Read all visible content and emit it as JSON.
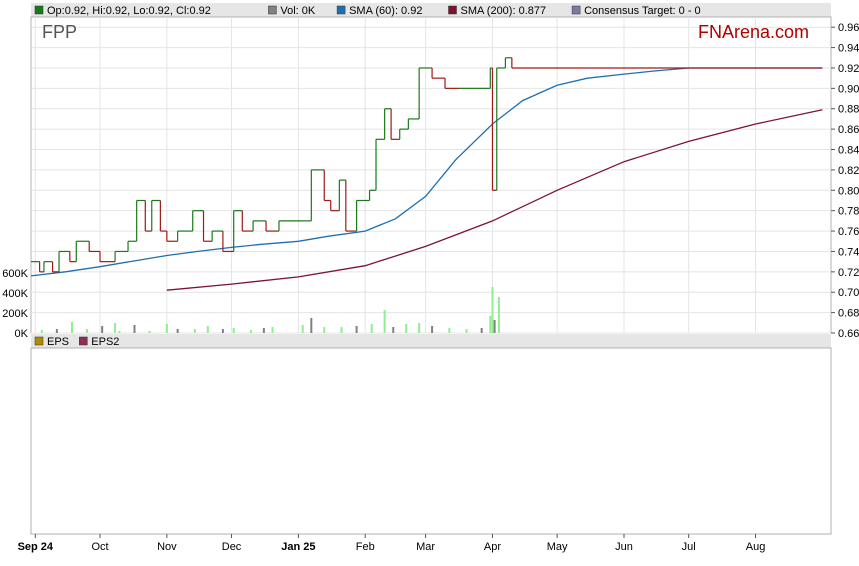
{
  "legend_top": [
    {
      "icon": "swatch-green-icon",
      "color": "#1a7a1a",
      "text": "Op:0.92, Hi:0.92, Lo:0.92, Cl:0.92"
    },
    {
      "icon": "swatch-grey-icon",
      "color": "#808080",
      "text": "Vol: 0K"
    },
    {
      "icon": "swatch-blue-icon",
      "color": "#1f6fb0",
      "text": "SMA (60): 0.92"
    },
    {
      "icon": "swatch-maroon-icon",
      "color": "#7a1530",
      "text": "SMA (200): 0.877"
    },
    {
      "icon": "swatch-purple-icon",
      "color": "#7a7aa8",
      "text": "Consensus Target: 0 - 0"
    }
  ],
  "legend_bottom": [
    {
      "icon": "swatch-olive-icon",
      "color": "#b08a00",
      "text": "EPS"
    },
    {
      "icon": "swatch-maroon-icon",
      "color": "#8a3058",
      "text": "EPS2"
    }
  ],
  "ticker": "FPP",
  "brand": "FNArena.com",
  "colors": {
    "up": "#1a7a1a",
    "down": "#a01818",
    "sma60": "#1f6fb0",
    "sma200": "#7a1530",
    "vol_up": "#90ee90",
    "vol_down": "#808080"
  },
  "chart_data": {
    "type": "line",
    "title": "FPP",
    "ylim": [
      0.66,
      0.97
    ],
    "y_ticks": [
      "0.96",
      "0.94",
      "0.92",
      "0.90",
      "0.88",
      "0.86",
      "0.84",
      "0.82",
      "0.80",
      "0.78",
      "0.76",
      "0.74",
      "0.72",
      "0.70",
      "0.68",
      "0.66"
    ],
    "volume_ticks": [
      "600K",
      "400K",
      "200K",
      "0K"
    ],
    "x_ticks": [
      {
        "label": "Sep 24",
        "date": "2024-09-01",
        "bold": true
      },
      {
        "label": "Oct",
        "date": "2024-10-01",
        "bold": false
      },
      {
        "label": "Nov",
        "date": "2024-11-01",
        "bold": false
      },
      {
        "label": "Dec",
        "date": "2024-12-01",
        "bold": false
      },
      {
        "label": "Jan 25",
        "date": "2025-01-01",
        "bold": true
      },
      {
        "label": "Feb",
        "date": "2025-02-01",
        "bold": false
      },
      {
        "label": "Mar",
        "date": "2025-03-01",
        "bold": false
      },
      {
        "label": "Apr",
        "date": "2025-04-01",
        "bold": false
      },
      {
        "label": "May",
        "date": "2025-05-01",
        "bold": false
      },
      {
        "label": "Jun",
        "date": "2025-06-01",
        "bold": false
      },
      {
        "label": "Jul",
        "date": "2025-07-01",
        "bold": false
      },
      {
        "label": "Aug",
        "date": "2025-08-01",
        "bold": false
      }
    ],
    "x_range": [
      "2024-08-30",
      "2025-09-05"
    ],
    "series": [
      {
        "name": "Price",
        "kind": "close_steps",
        "values": [
          [
            "2024-08-30",
            0.73
          ],
          [
            "2024-09-03",
            0.72
          ],
          [
            "2024-09-05",
            0.73
          ],
          [
            "2024-09-09",
            0.72
          ],
          [
            "2024-09-12",
            0.74
          ],
          [
            "2024-09-17",
            0.73
          ],
          [
            "2024-09-20",
            0.75
          ],
          [
            "2024-09-26",
            0.74
          ],
          [
            "2024-10-01",
            0.73
          ],
          [
            "2024-10-08",
            0.74
          ],
          [
            "2024-10-14",
            0.75
          ],
          [
            "2024-10-18",
            0.79
          ],
          [
            "2024-10-22",
            0.76
          ],
          [
            "2024-10-25",
            0.79
          ],
          [
            "2024-10-29",
            0.76
          ],
          [
            "2024-11-01",
            0.75
          ],
          [
            "2024-11-06",
            0.76
          ],
          [
            "2024-11-13",
            0.78
          ],
          [
            "2024-11-18",
            0.75
          ],
          [
            "2024-11-22",
            0.76
          ],
          [
            "2024-11-27",
            0.74
          ],
          [
            "2024-12-02",
            0.78
          ],
          [
            "2024-12-06",
            0.76
          ],
          [
            "2024-12-11",
            0.77
          ],
          [
            "2024-12-17",
            0.76
          ],
          [
            "2024-12-23",
            0.77
          ],
          [
            "2025-01-03",
            0.77
          ],
          [
            "2025-01-07",
            0.82
          ],
          [
            "2025-01-13",
            0.79
          ],
          [
            "2025-01-16",
            0.78
          ],
          [
            "2025-01-20",
            0.81
          ],
          [
            "2025-01-23",
            0.76
          ],
          [
            "2025-01-28",
            0.79
          ],
          [
            "2025-02-03",
            0.8
          ],
          [
            "2025-02-06",
            0.85
          ],
          [
            "2025-02-10",
            0.88
          ],
          [
            "2025-02-13",
            0.85
          ],
          [
            "2025-02-17",
            0.86
          ],
          [
            "2025-02-21",
            0.87
          ],
          [
            "2025-02-26",
            0.92
          ],
          [
            "2025-03-04",
            0.91
          ],
          [
            "2025-03-10",
            0.9
          ],
          [
            "2025-03-17",
            0.9
          ],
          [
            "2025-03-24",
            0.9
          ],
          [
            "2025-03-31",
            0.92
          ],
          [
            "2025-04-01",
            0.8
          ],
          [
            "2025-04-03",
            0.92
          ],
          [
            "2025-04-07",
            0.93
          ],
          [
            "2025-04-10",
            0.92
          ],
          [
            "2025-09-01",
            0.92
          ]
        ]
      },
      {
        "name": "SMA (60)",
        "values": [
          [
            "2024-08-30",
            0.716
          ],
          [
            "2024-09-15",
            0.72
          ],
          [
            "2024-10-01",
            0.725
          ],
          [
            "2024-10-15",
            0.73
          ],
          [
            "2024-11-01",
            0.736
          ],
          [
            "2024-11-15",
            0.74
          ],
          [
            "2024-12-01",
            0.744
          ],
          [
            "2024-12-15",
            0.747
          ],
          [
            "2025-01-01",
            0.75
          ],
          [
            "2025-01-15",
            0.755
          ],
          [
            "2025-02-01",
            0.76
          ],
          [
            "2025-02-15",
            0.772
          ],
          [
            "2025-03-01",
            0.794
          ],
          [
            "2025-03-15",
            0.83
          ],
          [
            "2025-04-01",
            0.865
          ],
          [
            "2025-04-15",
            0.888
          ],
          [
            "2025-05-01",
            0.903
          ],
          [
            "2025-05-15",
            0.91
          ],
          [
            "2025-06-01",
            0.914
          ],
          [
            "2025-06-15",
            0.917
          ],
          [
            "2025-07-01",
            0.92
          ],
          [
            "2025-09-01",
            0.92
          ]
        ]
      },
      {
        "name": "SMA (200)",
        "values": [
          [
            "2024-11-01",
            0.702
          ],
          [
            "2024-12-01",
            0.708
          ],
          [
            "2025-01-01",
            0.715
          ],
          [
            "2025-02-01",
            0.726
          ],
          [
            "2025-03-01",
            0.745
          ],
          [
            "2025-04-01",
            0.77
          ],
          [
            "2025-05-01",
            0.8
          ],
          [
            "2025-06-01",
            0.828
          ],
          [
            "2025-07-01",
            0.848
          ],
          [
            "2025-08-01",
            0.865
          ],
          [
            "2025-09-01",
            0.879
          ]
        ]
      },
      {
        "name": "Vol",
        "kind": "volume",
        "values": [
          [
            "2024-09-04",
            30000
          ],
          [
            "2024-09-11",
            40000
          ],
          [
            "2024-09-18",
            110000
          ],
          [
            "2024-09-25",
            40000
          ],
          [
            "2024-10-02",
            70000
          ],
          [
            "2024-10-08",
            100000
          ],
          [
            "2024-10-10",
            20000
          ],
          [
            "2024-10-17",
            80000
          ],
          [
            "2024-10-24",
            20000
          ],
          [
            "2024-11-01",
            90000
          ],
          [
            "2024-11-06",
            40000
          ],
          [
            "2024-11-14",
            40000
          ],
          [
            "2024-11-20",
            70000
          ],
          [
            "2024-11-27",
            40000
          ],
          [
            "2024-12-02",
            50000
          ],
          [
            "2024-12-10",
            30000
          ],
          [
            "2024-12-16",
            50000
          ],
          [
            "2024-12-20",
            60000
          ],
          [
            "2025-01-03",
            80000
          ],
          [
            "2025-01-07",
            150000
          ],
          [
            "2025-01-13",
            60000
          ],
          [
            "2025-01-21",
            60000
          ],
          [
            "2025-01-28",
            70000
          ],
          [
            "2025-02-04",
            90000
          ],
          [
            "2025-02-10",
            230000
          ],
          [
            "2025-02-14",
            60000
          ],
          [
            "2025-02-20",
            90000
          ],
          [
            "2025-02-26",
            100000
          ],
          [
            "2025-03-04",
            70000
          ],
          [
            "2025-03-12",
            50000
          ],
          [
            "2025-03-20",
            40000
          ],
          [
            "2025-03-27",
            50000
          ],
          [
            "2025-03-31",
            170000
          ],
          [
            "2025-04-01",
            460000
          ],
          [
            "2025-04-02",
            130000
          ],
          [
            "2025-04-04",
            360000
          ]
        ]
      }
    ],
    "grid": true,
    "legend": "top-left"
  }
}
